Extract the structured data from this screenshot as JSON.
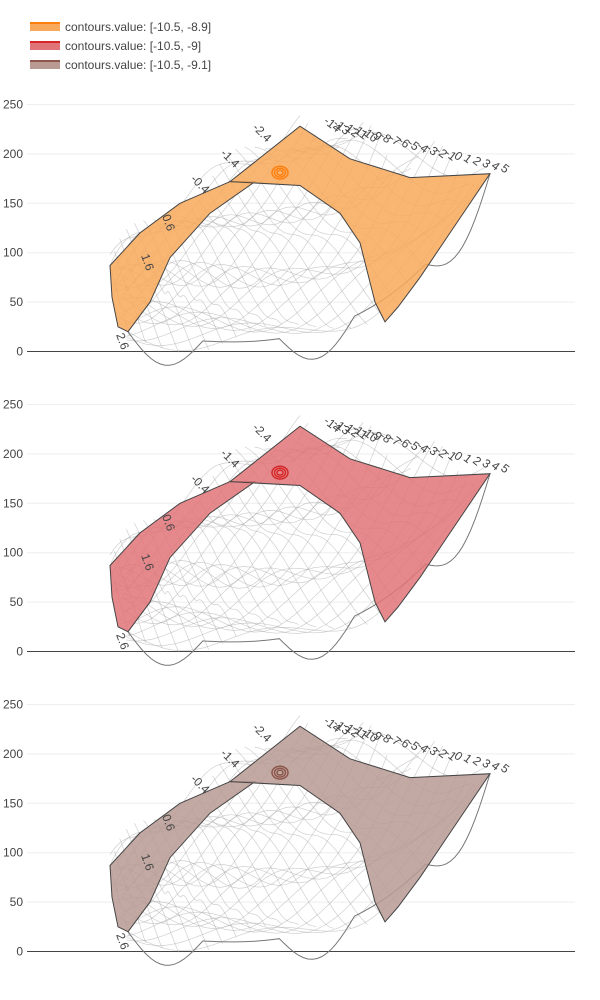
{
  "chart_data": [
    {
      "type": "contourcarpet",
      "series": [
        {
          "name": "contours.value: [-10.5, -8.9]",
          "color": "#ff7f0e",
          "fill": "#f8a95b",
          "constraint_range": [
            -10.5,
            -8.9
          ]
        }
      ],
      "y_ticks": [
        0,
        50,
        100,
        150,
        200,
        250
      ],
      "ylim": [
        0,
        260
      ],
      "a_labels": [
        "-14",
        "-13",
        "-12",
        "-11",
        "-10",
        "-9",
        "-8",
        "-7",
        "-6",
        "-5",
        "-4",
        "-3",
        "-2",
        "-1",
        "0",
        "1",
        "2",
        "3",
        "4",
        "5"
      ],
      "b_labels": [
        "-2.4",
        "-1.4",
        "-0.4",
        "0.6",
        "1.6",
        "2.6"
      ]
    },
    {
      "type": "contourcarpet",
      "series": [
        {
          "name": "contours.value: [-10.5, -9]",
          "color": "#d62728",
          "fill": "#e07478",
          "constraint_range": [
            -10.5,
            -9
          ]
        }
      ],
      "y_ticks": [
        0,
        50,
        100,
        150,
        200,
        250
      ],
      "ylim": [
        0,
        260
      ],
      "a_labels": [
        "-14",
        "-13",
        "-12",
        "-11",
        "-10",
        "-9",
        "-8",
        "-7",
        "-6",
        "-5",
        "-4",
        "-3",
        "-2",
        "-1",
        "0",
        "1",
        "2",
        "3",
        "4",
        "5"
      ],
      "b_labels": [
        "-2.4",
        "-1.4",
        "-0.4",
        "0.6",
        "1.6",
        "2.6"
      ]
    },
    {
      "type": "contourcarpet",
      "series": [
        {
          "name": "contours.value: [-10.5, -9.1]",
          "color": "#8c564b",
          "fill": "#b99a93",
          "constraint_range": [
            -10.5,
            -9.1
          ]
        }
      ],
      "y_ticks": [
        0,
        50,
        100,
        150,
        200,
        250
      ],
      "ylim": [
        0,
        260
      ],
      "a_labels": [
        "-14",
        "-13",
        "-12",
        "-11",
        "-10",
        "-9",
        "-8",
        "-7",
        "-6",
        "-5",
        "-4",
        "-3",
        "-2",
        "-1",
        "0",
        "1",
        "2",
        "3",
        "4",
        "5"
      ],
      "b_labels": [
        "-2.4",
        "-1.4",
        "-0.4",
        "0.6",
        "1.6",
        "2.6"
      ]
    }
  ]
}
